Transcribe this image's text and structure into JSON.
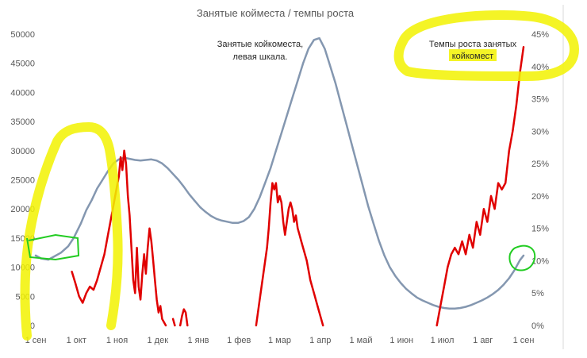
{
  "chart_data": {
    "type": "line",
    "title": "Занятые койместа / темпы роста",
    "x_ticks": [
      "1 сен",
      "1 окт",
      "1 ноя",
      "1 дек",
      "1 янв",
      "1 фев",
      "1 мар",
      "1 апр",
      "1 май",
      "1 июн",
      "1 июл",
      "1 авг",
      "1 сен"
    ],
    "y_left": {
      "ticks": [
        "0",
        "5000",
        "10000",
        "15000",
        "20000",
        "25000",
        "30000",
        "35000",
        "40000",
        "45000",
        "50000"
      ],
      "range": [
        0,
        50000
      ]
    },
    "y_right": {
      "ticks": [
        "0%",
        "5%",
        "10%",
        "15%",
        "20%",
        "25%",
        "30%",
        "35%",
        "40%",
        "45%"
      ],
      "range": [
        0,
        45
      ]
    },
    "annotations": [
      {
        "lines": [
          "Занятые койкоместа,",
          "левая шкала."
        ]
      },
      {
        "lines": [
          "Темпы роста занятых",
          "койкомест"
        ]
      }
    ],
    "series": [
      {
        "axis": "left",
        "color": "#8497b0",
        "points": [
          [
            0,
            12000
          ],
          [
            3,
            11500
          ],
          [
            7,
            11300
          ],
          [
            10,
            11800
          ],
          [
            14,
            12500
          ],
          [
            18,
            13600
          ],
          [
            21,
            15000
          ],
          [
            25,
            17500
          ],
          [
            28,
            19800
          ],
          [
            31,
            21500
          ],
          [
            34,
            23500
          ],
          [
            37,
            25000
          ],
          [
            40,
            26500
          ],
          [
            43,
            27800
          ],
          [
            46,
            28500
          ],
          [
            49,
            28800
          ],
          [
            52,
            28600
          ],
          [
            55,
            28400
          ],
          [
            58,
            28300
          ],
          [
            61,
            28400
          ],
          [
            64,
            28500
          ],
          [
            67,
            28300
          ],
          [
            70,
            27800
          ],
          [
            73,
            27000
          ],
          [
            76,
            26000
          ],
          [
            79,
            25000
          ],
          [
            82,
            23800
          ],
          [
            85,
            22500
          ],
          [
            88,
            21400
          ],
          [
            91,
            20300
          ],
          [
            94,
            19500
          ],
          [
            97,
            18800
          ],
          [
            100,
            18300
          ],
          [
            103,
            18000
          ],
          [
            106,
            17800
          ],
          [
            109,
            17600
          ],
          [
            112,
            17600
          ],
          [
            115,
            17900
          ],
          [
            118,
            18600
          ],
          [
            121,
            20000
          ],
          [
            124,
            22000
          ],
          [
            127,
            24500
          ],
          [
            130,
            27000
          ],
          [
            133,
            30000
          ],
          [
            136,
            33000
          ],
          [
            139,
            36000
          ],
          [
            142,
            39000
          ],
          [
            145,
            42000
          ],
          [
            148,
            45000
          ],
          [
            151,
            47500
          ],
          [
            154,
            49000
          ],
          [
            157,
            49300
          ],
          [
            160,
            47500
          ],
          [
            163,
            44500
          ],
          [
            166,
            41500
          ],
          [
            169,
            38000
          ],
          [
            172,
            34500
          ],
          [
            175,
            31000
          ],
          [
            178,
            27500
          ],
          [
            181,
            24000
          ],
          [
            184,
            20500
          ],
          [
            187,
            17500
          ],
          [
            190,
            14500
          ],
          [
            193,
            12000
          ],
          [
            196,
            10000
          ],
          [
            199,
            8500
          ],
          [
            202,
            7300
          ],
          [
            205,
            6300
          ],
          [
            208,
            5500
          ],
          [
            211,
            4800
          ],
          [
            214,
            4300
          ],
          [
            217,
            3900
          ],
          [
            220,
            3500
          ],
          [
            223,
            3200
          ],
          [
            226,
            3000
          ],
          [
            229,
            2900
          ],
          [
            232,
            2900
          ],
          [
            235,
            3000
          ],
          [
            238,
            3200
          ],
          [
            241,
            3500
          ],
          [
            244,
            3900
          ],
          [
            247,
            4300
          ],
          [
            250,
            4800
          ],
          [
            253,
            5400
          ],
          [
            256,
            6100
          ],
          [
            259,
            7000
          ],
          [
            262,
            8100
          ],
          [
            265,
            9500
          ],
          [
            268,
            11200
          ],
          [
            270,
            12000
          ]
        ]
      },
      {
        "axis": "right",
        "color": "#e00000",
        "segments": [
          [
            [
              20,
              8.3
            ],
            [
              22,
              6.5
            ],
            [
              24,
              4.5
            ],
            [
              26,
              3.5
            ],
            [
              28,
              5
            ],
            [
              30,
              6
            ],
            [
              32,
              5.5
            ],
            [
              34,
              7
            ],
            [
              36,
              9
            ],
            [
              38,
              11
            ],
            [
              40,
              14
            ],
            [
              42,
              17
            ],
            [
              44,
              20
            ],
            [
              46,
              23
            ],
            [
              47,
              26
            ],
            [
              48,
              24
            ],
            [
              49,
              27
            ],
            [
              50,
              25
            ],
            [
              51,
              20
            ],
            [
              52,
              17
            ],
            [
              53,
              12
            ],
            [
              54,
              7
            ],
            [
              55,
              5
            ],
            [
              56,
              12
            ],
            [
              57,
              6
            ],
            [
              58,
              4
            ],
            [
              59,
              8
            ],
            [
              60,
              11
            ],
            [
              61,
              8
            ],
            [
              62,
              12
            ],
            [
              63,
              15
            ],
            [
              64,
              13
            ],
            [
              65,
              10
            ],
            [
              66,
              7
            ],
            [
              67,
              4
            ],
            [
              68,
              2
            ],
            [
              69,
              3
            ],
            [
              70,
              1
            ],
            [
              71,
              0.5
            ],
            [
              72,
              0
            ]
          ],
          [
            [
              76,
              1
            ],
            [
              77,
              0
            ]
          ],
          [
            [
              80,
              0
            ],
            [
              81,
              1.5
            ],
            [
              82,
              2.5
            ],
            [
              83,
              2
            ],
            [
              84,
              0
            ]
          ],
          [
            [
              122,
              0
            ],
            [
              124,
              4
            ],
            [
              126,
              8
            ],
            [
              128,
              12
            ],
            [
              129,
              15
            ],
            [
              130,
              19
            ],
            [
              131,
              22
            ],
            [
              132,
              21
            ],
            [
              133,
              22
            ],
            [
              134,
              19
            ],
            [
              135,
              20
            ],
            [
              136,
              19
            ],
            [
              137,
              16
            ],
            [
              138,
              14
            ],
            [
              139,
              16
            ],
            [
              140,
              18
            ],
            [
              141,
              19
            ],
            [
              142,
              18
            ],
            [
              143,
              16
            ],
            [
              144,
              17
            ],
            [
              145,
              15
            ],
            [
              146,
              14
            ],
            [
              147,
              13
            ],
            [
              148,
              12
            ],
            [
              150,
              10
            ],
            [
              152,
              7
            ],
            [
              154,
              5
            ],
            [
              156,
              3
            ],
            [
              158,
              1
            ],
            [
              159,
              0
            ]
          ],
          [
            [
              222,
              0
            ],
            [
              224,
              3
            ],
            [
              226,
              6
            ],
            [
              228,
              9
            ],
            [
              230,
              11
            ],
            [
              232,
              12
            ],
            [
              234,
              11
            ],
            [
              236,
              13
            ],
            [
              238,
              11
            ],
            [
              240,
              14
            ],
            [
              242,
              12
            ],
            [
              244,
              16
            ],
            [
              246,
              14
            ],
            [
              248,
              18
            ],
            [
              250,
              16
            ],
            [
              252,
              20
            ],
            [
              254,
              18
            ],
            [
              256,
              22
            ],
            [
              258,
              21
            ],
            [
              260,
              22
            ],
            [
              262,
              27
            ],
            [
              264,
              30
            ],
            [
              266,
              34
            ],
            [
              268,
              39
            ],
            [
              270,
              43
            ]
          ]
        ]
      }
    ]
  }
}
